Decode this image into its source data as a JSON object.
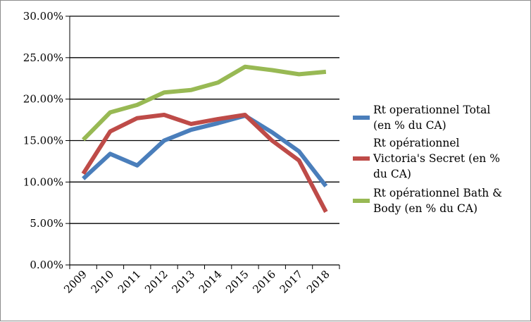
{
  "chart_data": {
    "type": "line",
    "title": "",
    "xlabel": "",
    "ylabel": "",
    "categories": [
      "2009",
      "2010",
      "2011",
      "2012",
      "2013",
      "2014",
      "2015",
      "2016",
      "2017",
      "2018"
    ],
    "ylim": [
      0,
      30
    ],
    "y_tick_labels": [
      "0.00%",
      "5.00%",
      "10.00%",
      "15.00%",
      "20.00%",
      "25.00%",
      "30.00%"
    ],
    "y_tick_values": [
      0,
      5,
      10,
      15,
      20,
      25,
      30
    ],
    "grid": true,
    "legend_position": "right",
    "series": [
      {
        "name": "Rt operationnel Total (en % du CA)",
        "legend_lines": [
          "Rt operationnel Total",
          "(en % du CA)"
        ],
        "color": "#4a7ebb",
        "values": [
          10.4,
          13.4,
          12.0,
          15.0,
          16.3,
          17.1,
          18.0,
          16.0,
          13.7,
          9.5
        ]
      },
      {
        "name": "Rt opérationnel Victoria's Secret (en % du CA)",
        "legend_lines": [
          "Rt opérationnel",
          "Victoria's Secret (en %",
          "du CA)"
        ],
        "color": "#be4b48",
        "values": [
          11.0,
          16.1,
          17.7,
          18.1,
          17.0,
          17.6,
          18.1,
          15.0,
          12.6,
          6.4
        ]
      },
      {
        "name": "Rt opérationnel Bath & Body (en % du CA)",
        "legend_lines": [
          "Rt opérationnel Bath &",
          "Body (en % du CA)"
        ],
        "color": "#98b954",
        "values": [
          15.1,
          18.4,
          19.3,
          20.8,
          21.1,
          22.0,
          23.9,
          23.5,
          23.0,
          23.3
        ]
      }
    ]
  }
}
